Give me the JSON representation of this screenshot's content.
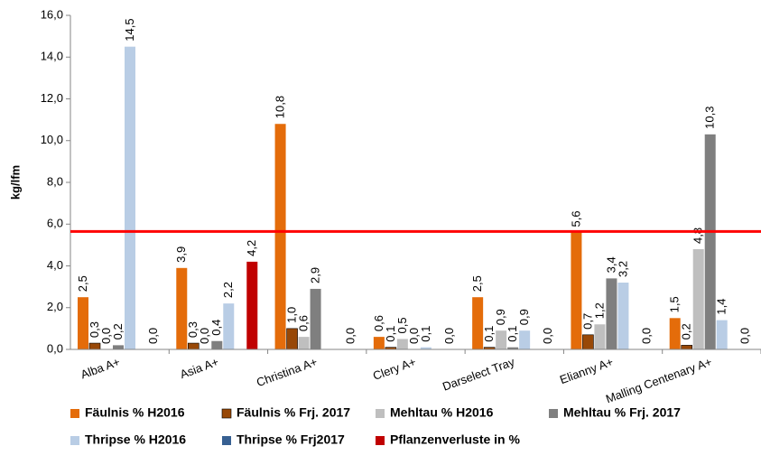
{
  "chart_data": {
    "type": "bar",
    "ylabel": "kg/lfm",
    "categories": [
      "Alba A+",
      "Asia A+",
      "Christina A+",
      "Clery A+",
      "Darselect Tray",
      "Elianny A+",
      "Malling Centenary A+"
    ],
    "series": [
      {
        "name": "Fäulnis % H2016",
        "color": "#e46c0a",
        "values": [
          2.5,
          3.9,
          10.8,
          0.6,
          2.5,
          5.6,
          1.5
        ],
        "value_labels": [
          "2,5",
          "3,9",
          "10,8",
          "0,6",
          "2,5",
          "5,6",
          "1,5"
        ]
      },
      {
        "name": "Fäulnis % Frj. 2017",
        "color": "#984807",
        "values": [
          0.3,
          0.3,
          1.0,
          0.1,
          0.1,
          0.7,
          0.2
        ],
        "value_labels": [
          "0,3",
          "0,3",
          "1,0",
          "0,1",
          "0,1",
          "0,7",
          "0,2"
        ]
      },
      {
        "name": "Mehltau % H2016",
        "color": "#bfbfbf",
        "values": [
          0.0,
          0.0,
          0.6,
          0.5,
          0.9,
          1.2,
          4.8
        ],
        "value_labels": [
          "0,0",
          "0,0",
          "0,6",
          "0,5",
          "0,9",
          "1,2",
          "4,8"
        ]
      },
      {
        "name": "Mehltau % Frj. 2017",
        "color": "#7f7f7f",
        "values": [
          0.2,
          0.4,
          2.9,
          0.0,
          0.1,
          3.4,
          10.3
        ],
        "value_labels": [
          "0,2",
          "0,4",
          "2,9",
          "0,0",
          "0,1",
          "3,4",
          "10,3"
        ]
      },
      {
        "name": "Thripse % H2016",
        "color": "#b9cde5",
        "values": [
          14.5,
          2.2,
          null,
          0.1,
          0.9,
          3.2,
          1.4
        ],
        "value_labels": [
          "14,5",
          "2,2",
          null,
          "0,1",
          "0,9",
          "3,2",
          "1,4"
        ]
      },
      {
        "name": "Thripse % Frj2017",
        "color": "#376092",
        "values": [
          null,
          null,
          null,
          null,
          null,
          null,
          null
        ],
        "value_labels": [
          null,
          null,
          null,
          null,
          null,
          null,
          null
        ]
      },
      {
        "name": "Pflanzenverluste in %",
        "color": "#c00000",
        "values": [
          0.0,
          4.2,
          0.0,
          0.0,
          0.0,
          0.0,
          0.0
        ],
        "value_labels": [
          "0,0",
          "4,2",
          "0,0",
          "0,0",
          "0,0",
          "0,0",
          "0,0"
        ]
      }
    ],
    "reference_line": {
      "value": 5.65,
      "color": "#ff0000"
    },
    "ylim": [
      0,
      16
    ],
    "yticks": [
      {
        "value": 0,
        "label": "0,0"
      },
      {
        "value": 2,
        "label": "2,0"
      },
      {
        "value": 4,
        "label": "4,0"
      },
      {
        "value": 6,
        "label": "6,0"
      },
      {
        "value": 8,
        "label": "8,0"
      },
      {
        "value": 10,
        "label": "10,0"
      },
      {
        "value": 12,
        "label": "12,0"
      },
      {
        "value": 14,
        "label": "14,0"
      },
      {
        "value": 16,
        "label": "16,0"
      }
    ],
    "grid": false
  }
}
